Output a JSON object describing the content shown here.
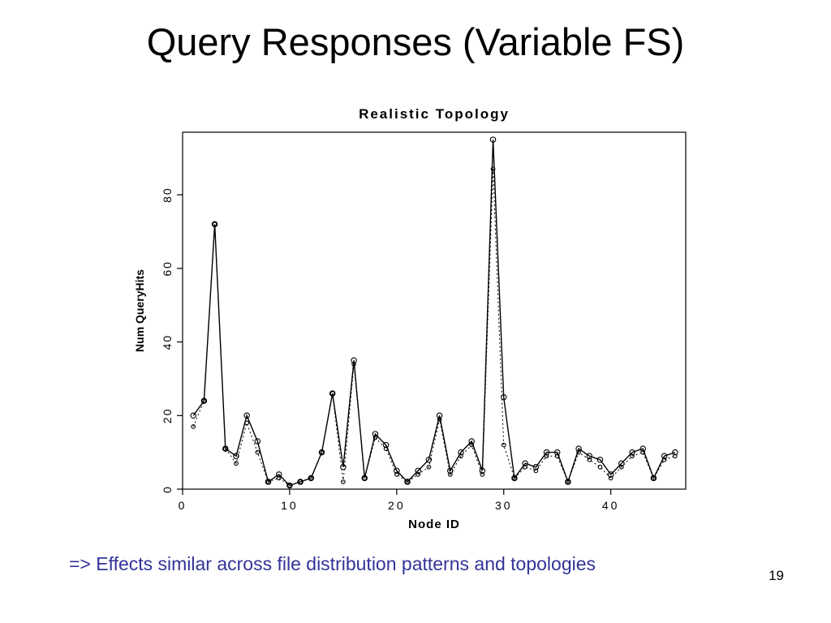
{
  "slide": {
    "title": "Query Responses (Variable FS)",
    "note": "=> Effects similar across file distribution patterns and topologies",
    "page_number": "19"
  },
  "colors": {
    "note_text": "#333399",
    "chart_ink": "#000000",
    "background": "#ffffff"
  },
  "chart_data": {
    "type": "line",
    "title": "Realistic  Topology",
    "xlabel": "Node ID",
    "ylabel": "Num QueryHits",
    "xlim": [
      0,
      47
    ],
    "ylim": [
      0,
      97
    ],
    "xticks": [
      0,
      10,
      20,
      30,
      40
    ],
    "yticks": [
      0,
      20,
      40,
      60,
      80
    ],
    "grid": false,
    "legend": "none",
    "x": [
      1,
      2,
      3,
      4,
      5,
      6,
      7,
      8,
      9,
      10,
      11,
      12,
      13,
      14,
      15,
      16,
      17,
      18,
      19,
      20,
      21,
      22,
      23,
      24,
      25,
      26,
      27,
      28,
      29,
      30,
      31,
      32,
      33,
      34,
      35,
      36,
      37,
      38,
      39,
      40,
      41,
      42,
      43,
      44,
      45,
      46
    ],
    "series": [
      {
        "name": "dotted",
        "style": "dotted",
        "marker": "circle",
        "values": [
          17,
          24,
          72,
          11,
          7,
          18,
          10,
          2,
          3,
          1,
          2,
          3,
          10,
          26,
          2,
          34,
          3,
          14,
          11,
          4,
          2,
          4,
          6,
          19,
          4,
          9,
          12,
          4,
          87,
          12,
          3,
          6,
          5,
          9,
          9,
          2,
          10,
          8,
          6,
          3,
          6,
          9,
          10,
          3,
          8,
          9
        ]
      },
      {
        "name": "solid",
        "style": "solid",
        "marker": "circle",
        "values": [
          20,
          24,
          72,
          11,
          9,
          20,
          13,
          2,
          4,
          1,
          2,
          3,
          10,
          26,
          6,
          35,
          3,
          15,
          12,
          5,
          2,
          5,
          8,
          20,
          5,
          10,
          13,
          5,
          95,
          25,
          3,
          7,
          6,
          10,
          10,
          2,
          11,
          9,
          8,
          4,
          7,
          10,
          11,
          3,
          9,
          10
        ]
      }
    ]
  }
}
